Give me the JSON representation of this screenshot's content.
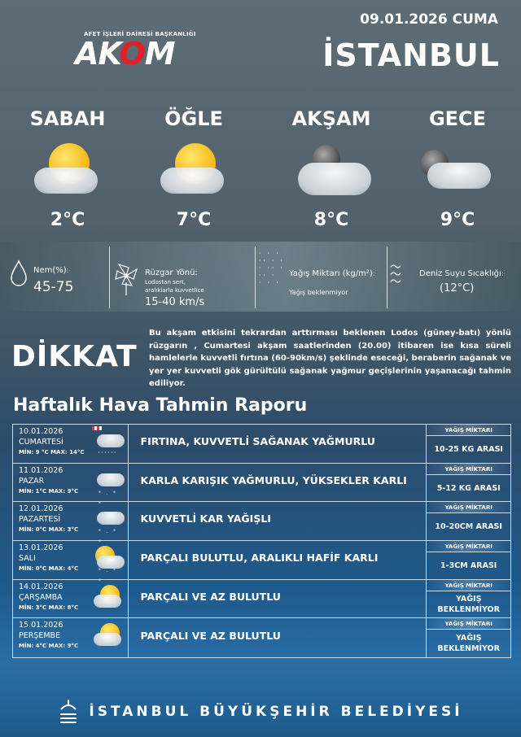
{
  "header": {
    "date": "09.01.2026 CUMA",
    "city": "İSTANBUL",
    "logo_text": "AKOM",
    "logo_subtitle": "AFET İŞLERİ DAİRESİ BAŞKANLIĞI",
    "accent": "#e31e24"
  },
  "periods": [
    {
      "label": "SABAH",
      "temp": "2°C",
      "icon": "sun-behind-cloud-icon"
    },
    {
      "label": "ÖĞLE",
      "temp": "7°C",
      "icon": "sun-behind-cloud-icon"
    },
    {
      "label": "AKŞAM",
      "temp": "8°C",
      "icon": "moon-behind-cloud-icon"
    },
    {
      "label": "GECE",
      "temp": "9°C",
      "icon": "moon-behind-cloud-icon"
    }
  ],
  "conditions": {
    "humidity": {
      "label": "Nem(%):",
      "value": "45-75"
    },
    "wind": {
      "label": "Rüzgar Yönü:",
      "desc_line1": "Lodostan sert,",
      "desc_line2": "aralıklarla kuvvetlice",
      "value": "15-40 km/s"
    },
    "precip": {
      "label": "Yağış Miktarı (kg/m²):",
      "value": "Yağış beklenmiyor"
    },
    "sea": {
      "label": "Deniz Suyu Sıcaklığı:",
      "value": "(12°C)"
    }
  },
  "warning": {
    "title": "DİKKAT",
    "text": "Bu akşam etkisini tekrardan arttırması beklenen Lodos (güney-batı) yönlü rüzgarın , Cumartesi akşam saatlerinden (20.00) itibaren ise kısa süreli hamlelerle kuvvetli fırtına (60-90km/s) şeklinde eseceği, beraberin sağanak ve yer yer kuvvetli gök gürültülü sağanak yağmur geçişlerinin yaşanacağı tahmin ediliyor."
  },
  "weekly": {
    "title": "Haftalık Hava Tahmin Raporu",
    "precip_header": "YAĞIŞ MİKTARI",
    "min_label": "MİN:",
    "max_label": "MAX:",
    "days": [
      {
        "date": "10.01.2026",
        "day": "CUMARTESİ",
        "min": "9 °C",
        "max": "14°C",
        "forecast": "FIRTINA, KUVVETLİ SAĞANAK YAĞMURLU",
        "precip": "10-25 KG ARASI",
        "icon": "storm-rain-icon"
      },
      {
        "date": "11.01.2026",
        "day": "PAZAR",
        "min": "1°C",
        "max": "9°C",
        "forecast": "KARLA KARIŞIK YAĞMURLU, YÜKSEKLER KARLI",
        "precip": "5-12 KG ARASI",
        "icon": "sleet-icon"
      },
      {
        "date": "12.01.2026",
        "day": "PAZARTESİ",
        "min": "0°C",
        "max": "3°C",
        "forecast": "KUVVETLİ KAR YAĞIŞLI",
        "precip": "10-20CM ARASI",
        "icon": "snow-icon"
      },
      {
        "date": "13.01.2026",
        "day": "SALI",
        "min": "0°C",
        "max": "4°C",
        "forecast": "PARÇALI BULUTLU, ARALIKLI HAFİF KARLI",
        "precip": "1-3CM ARASI",
        "icon": "sun-cloud-snow-icon"
      },
      {
        "date": "14.01.2026",
        "day": "ÇARŞAMBA",
        "min": "3°C",
        "max": "8°C",
        "forecast": "PARÇALI VE AZ BULUTLU",
        "precip": "YAĞIŞ BEKLENMİYOR",
        "icon": "partly-cloudy-icon"
      },
      {
        "date": "15.01.2026",
        "day": "PERŞEMBE",
        "min": "4°C",
        "max": "9°C",
        "forecast": "PARÇALI VE AZ BULUTLU",
        "precip": "YAĞIŞ BEKLENMİYOR",
        "icon": "partly-cloudy-icon"
      }
    ]
  },
  "footer": {
    "text": "İSTANBUL BÜYÜKŞEHİR BELEDİYESİ"
  }
}
